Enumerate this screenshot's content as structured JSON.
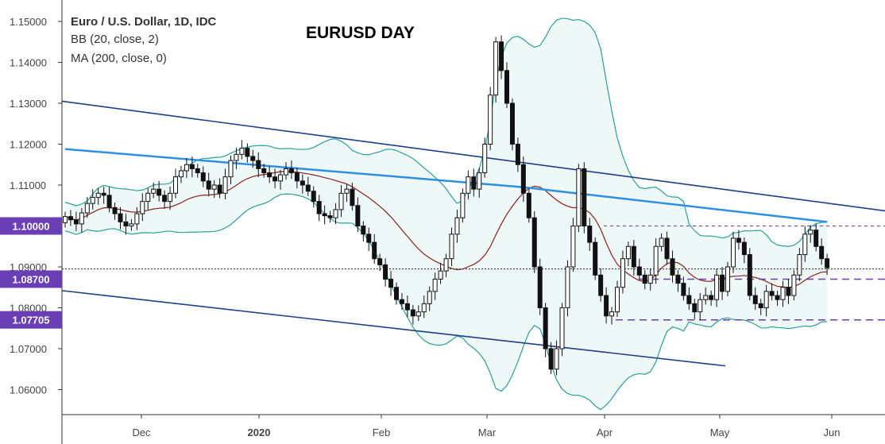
{
  "chart_data": {
    "type": "candlestick",
    "title": "EURUSD DAY",
    "legend": [
      "Euro / U.S. Dollar, 1D, IDC",
      "BB (20, close, 2)",
      "MA (200, close, 0)"
    ],
    "y_ticks": [
      "1.15000",
      "1.14000",
      "1.13000",
      "1.12000",
      "1.11000",
      "1.10000",
      "1.09000",
      "1.08000",
      "1.07000",
      "1.06000"
    ],
    "x_ticks": [
      "Dec",
      "2020",
      "Feb",
      "Mar",
      "Apr",
      "May",
      "Jun"
    ],
    "ylim": [
      1.0535,
      1.1545
    ],
    "price_tags": [
      {
        "label": "1.10000",
        "value": 1.1,
        "color": "#6a3fb5"
      },
      {
        "label": "1.08700",
        "value": 1.087,
        "color": "#6a3fb5"
      },
      {
        "label": "1.07705",
        "value": 1.07705,
        "color": "#6a3fb5"
      }
    ],
    "dotted_line": 1.0895,
    "colors": {
      "candle_up": "#ffffff",
      "candle_down": "#111111",
      "ma200": "#2f8fe0",
      "bb_basis": "#8b2020",
      "bb_band": "#2aa198",
      "bb_fill": "#eef8f6",
      "channel": "#1b3f8b",
      "levels": "#6a3fb5"
    },
    "close": [
      1.1023,
      1.1015,
      1.1005,
      1.1032,
      1.1055,
      1.107,
      1.108,
      1.1075,
      1.1045,
      1.103,
      1.101,
      1.1,
      1.1005,
      1.103,
      1.106,
      1.108,
      1.109,
      1.1075,
      1.106,
      1.108,
      1.112,
      1.1135,
      1.115,
      1.114,
      1.113,
      1.111,
      1.109,
      1.11,
      1.108,
      1.112,
      1.116,
      1.1175,
      1.119,
      1.117,
      1.116,
      1.114,
      1.113,
      1.112,
      1.111,
      1.1125,
      1.114,
      1.113,
      1.111,
      1.11,
      1.1085,
      1.106,
      1.103,
      1.1025,
      1.102,
      1.104,
      1.108,
      1.109,
      1.105,
      1.1,
      1.098,
      1.096,
      1.092,
      1.0905,
      1.087,
      1.085,
      1.082,
      1.081,
      1.0795,
      1.078,
      1.079,
      1.081,
      1.084,
      1.087,
      1.089,
      1.092,
      1.098,
      1.102,
      1.108,
      1.112,
      1.109,
      1.113,
      1.12,
      1.132,
      1.145,
      1.138,
      1.13,
      1.12,
      1.115,
      1.108,
      1.102,
      1.09,
      1.08,
      1.07,
      1.065,
      1.07,
      1.08,
      1.09,
      1.1,
      1.114,
      1.1,
      1.096,
      1.088,
      1.083,
      1.078,
      1.079,
      1.085,
      1.092,
      1.095,
      1.09,
      1.088,
      1.086,
      1.088,
      1.095,
      1.097,
      1.092,
      1.088,
      1.086,
      1.083,
      1.081,
      1.079,
      1.082,
      1.083,
      1.082,
      1.088,
      1.084,
      1.09,
      1.097,
      1.096,
      1.093,
      1.083,
      1.081,
      1.08,
      1.084,
      1.083,
      1.082,
      1.085,
      1.083,
      1.088,
      1.093,
      1.098,
      1.099,
      1.095,
      1.092,
      1.0898
    ]
  }
}
